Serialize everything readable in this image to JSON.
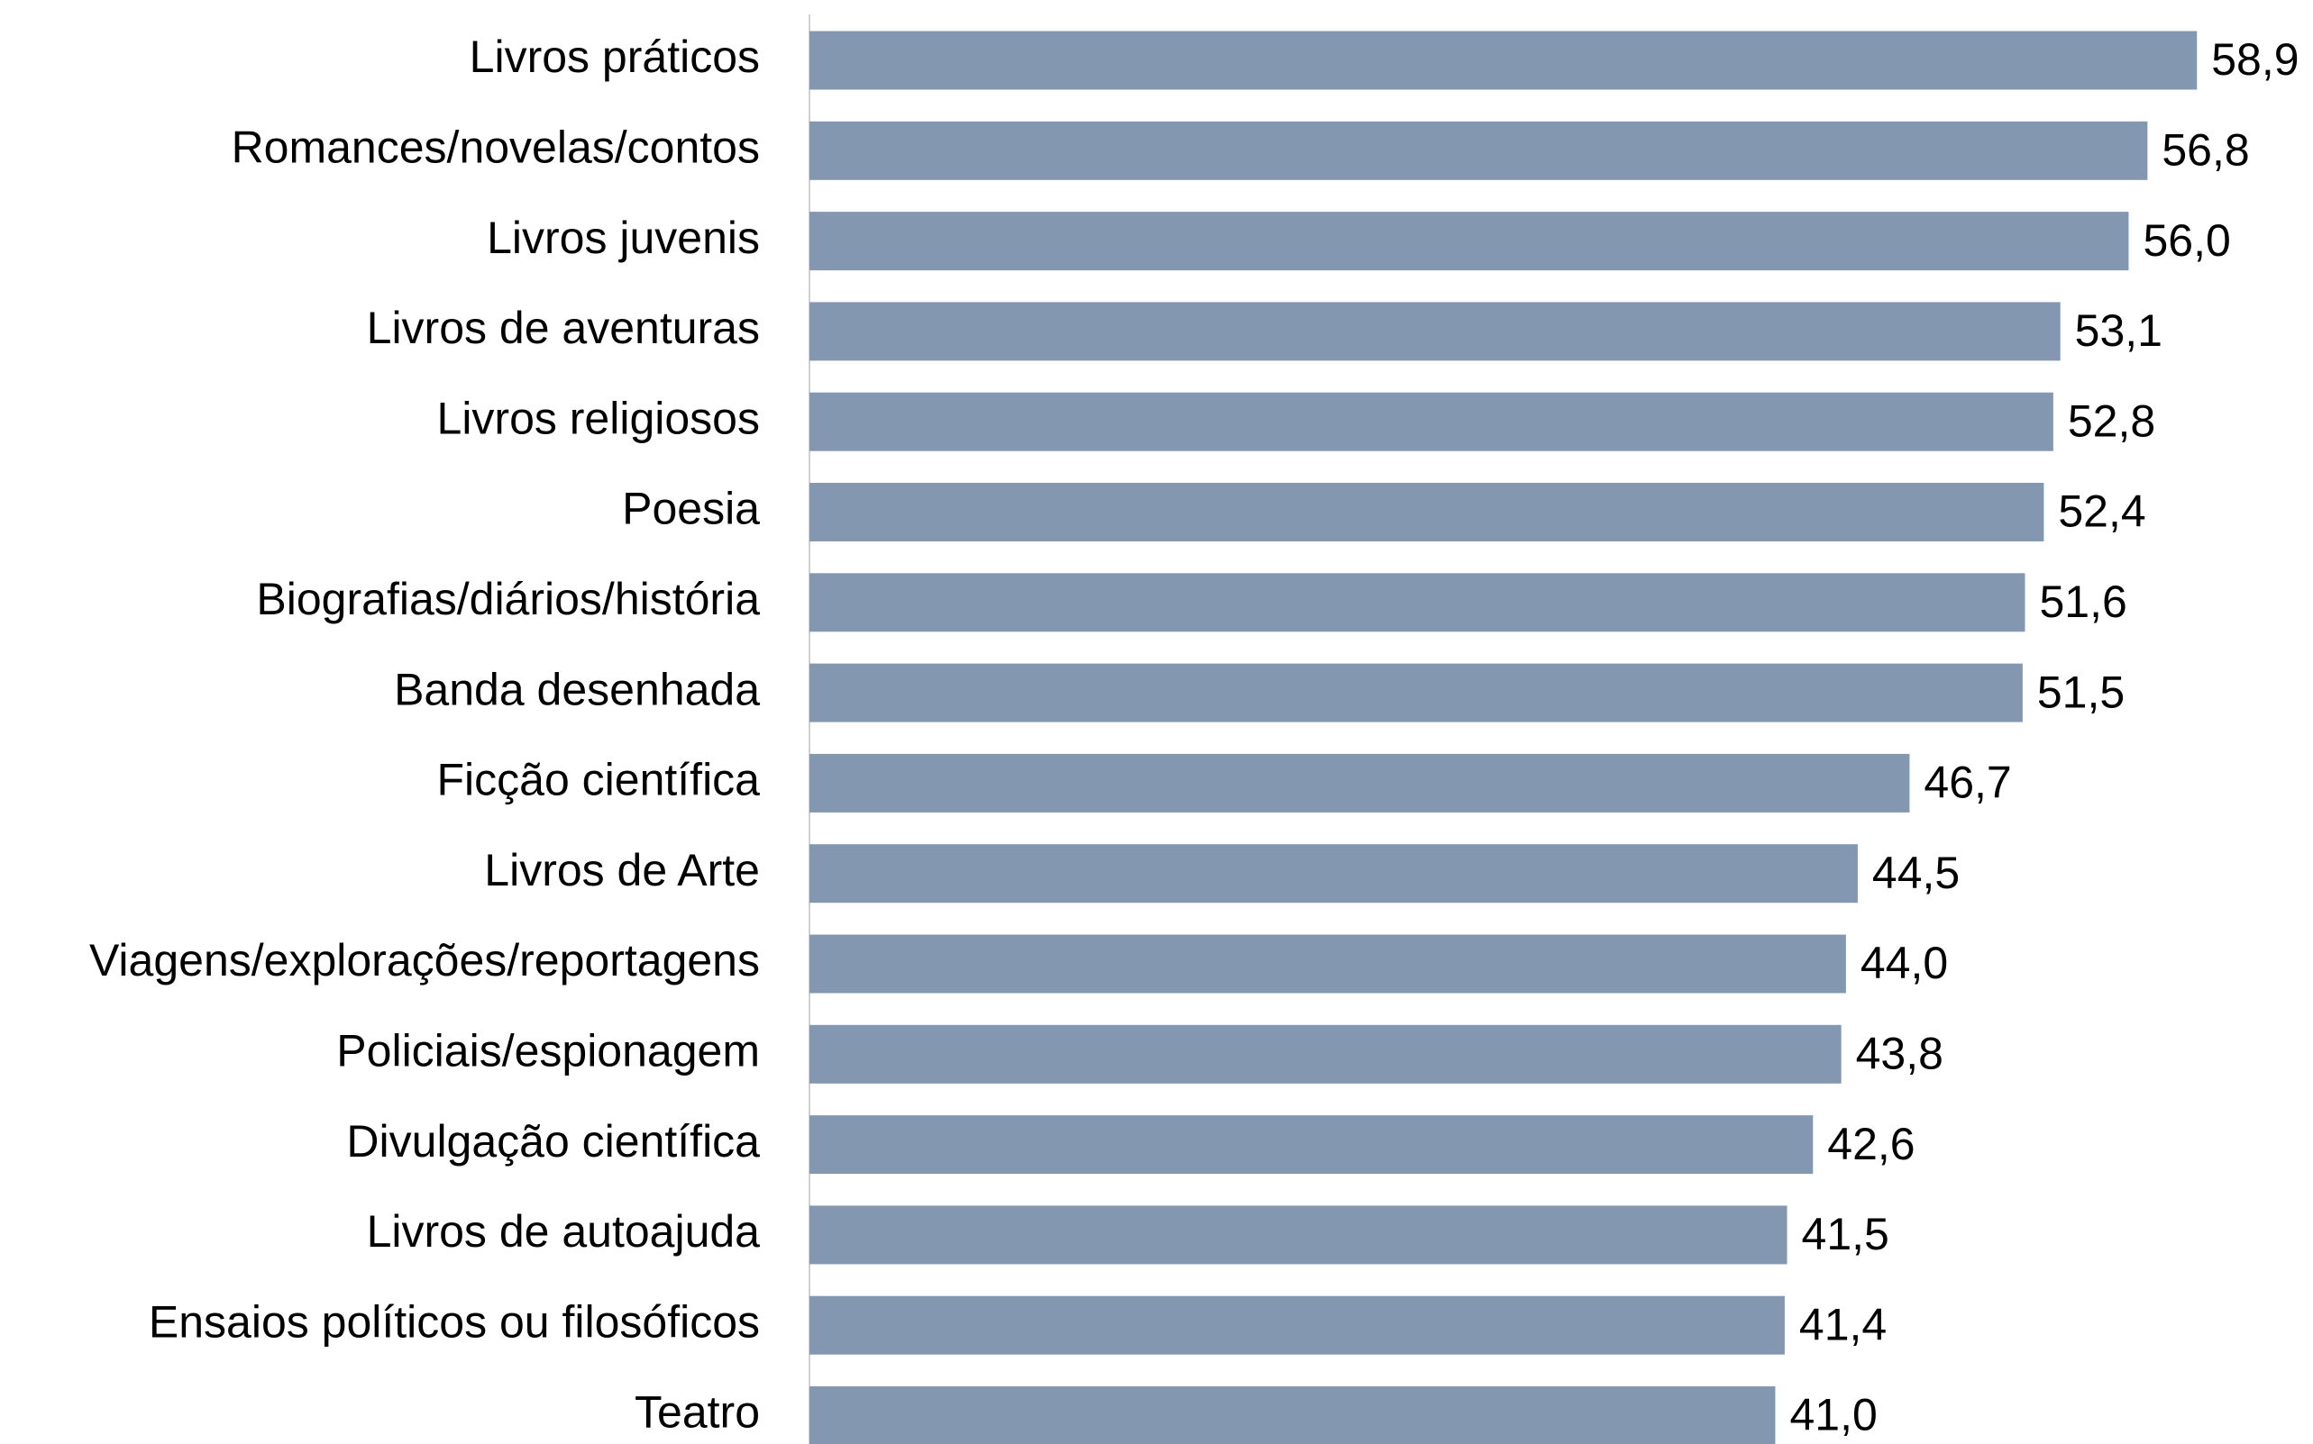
{
  "chart_data": {
    "type": "bar",
    "orientation": "horizontal",
    "categories": [
      "Livros práticos",
      "Romances/novelas/contos",
      "Livros juvenis",
      "Livros de aventuras",
      "Livros religiosos",
      "Poesia",
      "Biografias/diários/história",
      "Banda desenhada",
      "Ficção científica",
      "Livros de Arte",
      "Viagens/explorações/reportagens",
      "Policiais/espionagem",
      "Divulgação científica",
      "Livros de autoajuda",
      "Ensaios políticos ou filosóficos",
      "Teatro"
    ],
    "values": [
      58.9,
      56.8,
      56.0,
      53.1,
      52.8,
      52.4,
      51.6,
      51.5,
      46.7,
      44.5,
      44.0,
      43.8,
      42.6,
      41.5,
      41.4,
      41.0
    ],
    "value_labels": [
      "58,9",
      "56,8",
      "56,0",
      "53,1",
      "52,8",
      "52,4",
      "51,6",
      "51,5",
      "46,7",
      "44,5",
      "44,0",
      "43,8",
      "42,6",
      "41,5",
      "41,4",
      "41,0"
    ],
    "color": "#8497b0",
    "xlim": [
      0,
      60
    ]
  }
}
